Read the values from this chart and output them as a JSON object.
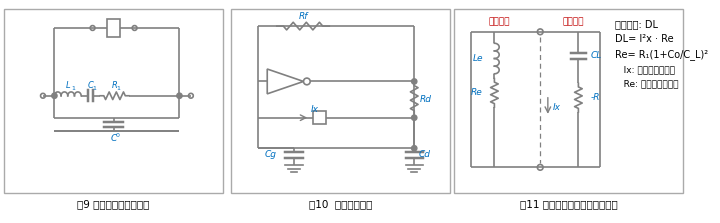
{
  "bg_color": "#ffffff",
  "border_color": "#aaaaaa",
  "wire_color": "#808080",
  "component_color": "#808080",
  "label_blue": "#0070c0",
  "label_red": "#c00000",
  "label_black": "#000000",
  "panel1_caption": "图9 石英晶振的等效电路",
  "panel2_caption": "图10  振荡电路事例",
  "panel3_caption": "图11 晶振与振荡电路之间的关系",
  "figsize": [
    7.2,
    2.23
  ],
  "dpi": 100
}
